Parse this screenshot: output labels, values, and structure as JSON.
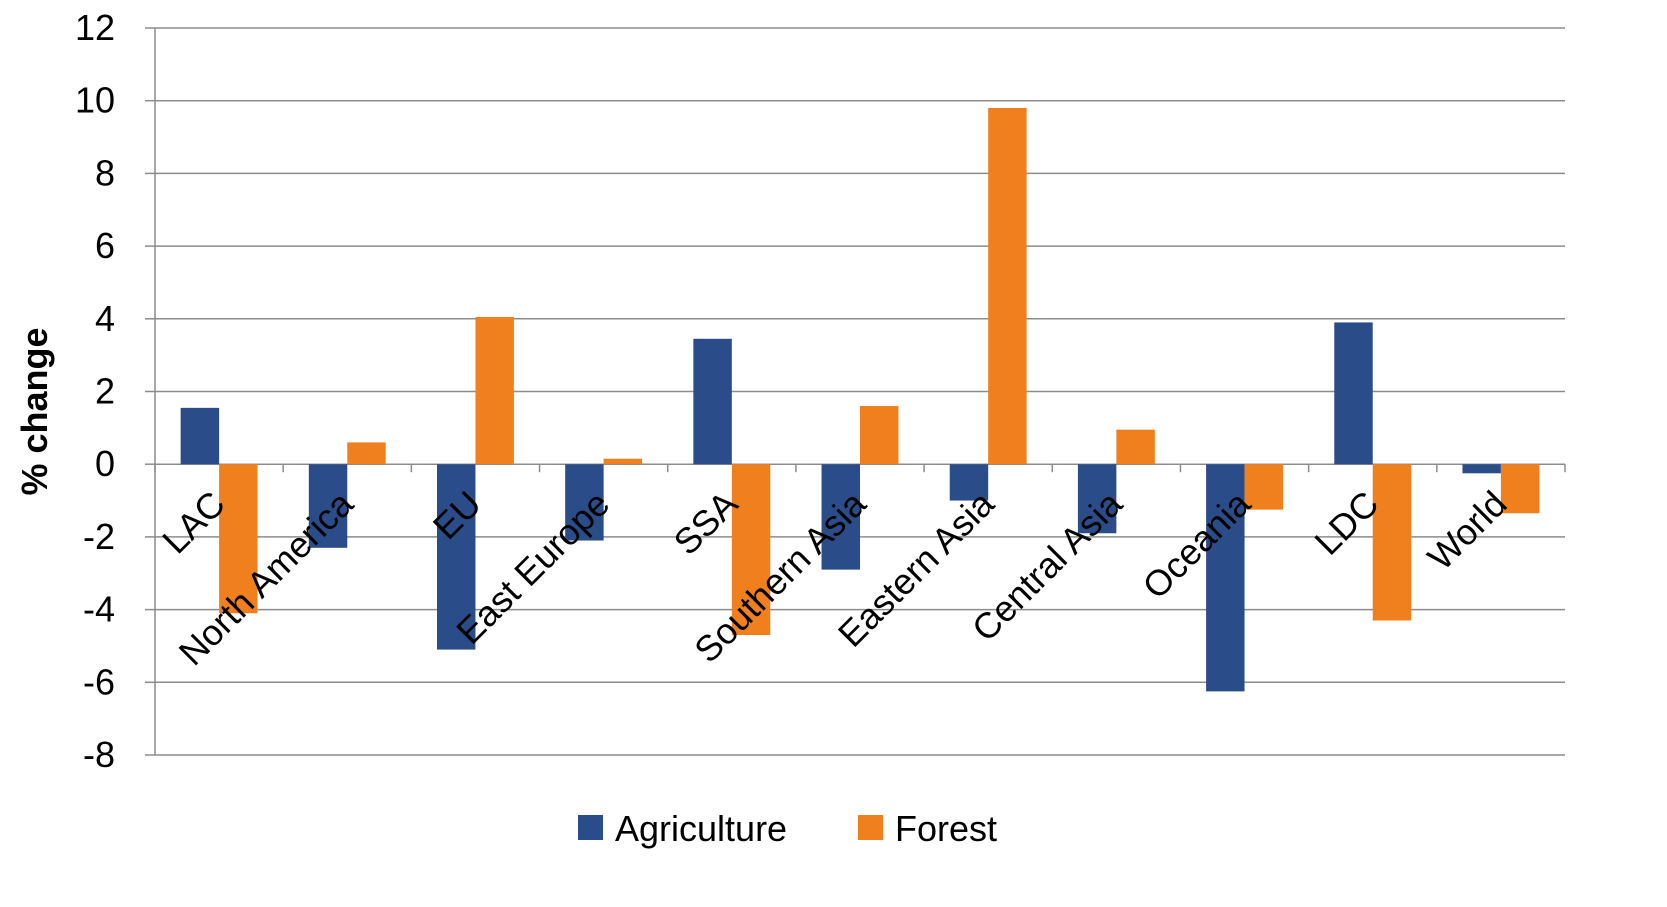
{
  "chart_data": {
    "type": "bar",
    "title": "",
    "xlabel": "",
    "ylabel": "% change",
    "ylim": [
      -8,
      12
    ],
    "yticks": [
      12,
      10,
      8,
      6,
      4,
      2,
      0,
      -2,
      -4,
      -6,
      -8
    ],
    "grid": true,
    "legend_position": "bottom",
    "categories": [
      "LAC",
      "North America",
      "EU",
      "East Europe",
      "SSA",
      "Southern Asia",
      "Eastern Asia",
      "Central Asia",
      "Oceania",
      "LDC",
      "World"
    ],
    "series": [
      {
        "name": "Agriculture",
        "color": "#2a4d8a",
        "values": [
          1.55,
          -2.3,
          -5.1,
          -2.1,
          3.45,
          -2.9,
          -1.0,
          -1.9,
          -6.25,
          3.9,
          -0.25
        ]
      },
      {
        "name": "Forest",
        "color": "#f07f1e",
        "values": [
          -4.1,
          0.6,
          4.05,
          0.15,
          -4.7,
          1.6,
          9.8,
          0.95,
          -1.25,
          -4.3,
          -1.35
        ]
      }
    ]
  }
}
